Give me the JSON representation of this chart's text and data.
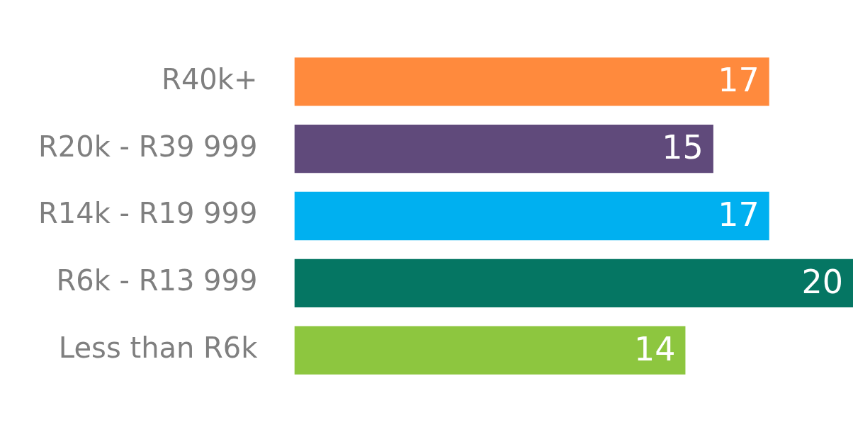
{
  "chart_data": {
    "type": "bar",
    "orientation": "horizontal",
    "categories": [
      "R40k+",
      "R20k - R39 999",
      "R14k - R19 999",
      "R6k - R13 999",
      "Less than R6k"
    ],
    "values": [
      17,
      15,
      17,
      20,
      14
    ],
    "colors": [
      "#ff8a3d",
      "#604a7b",
      "#00b0f0",
      "#057663",
      "#8dc63f"
    ],
    "data_labels": true
  }
}
